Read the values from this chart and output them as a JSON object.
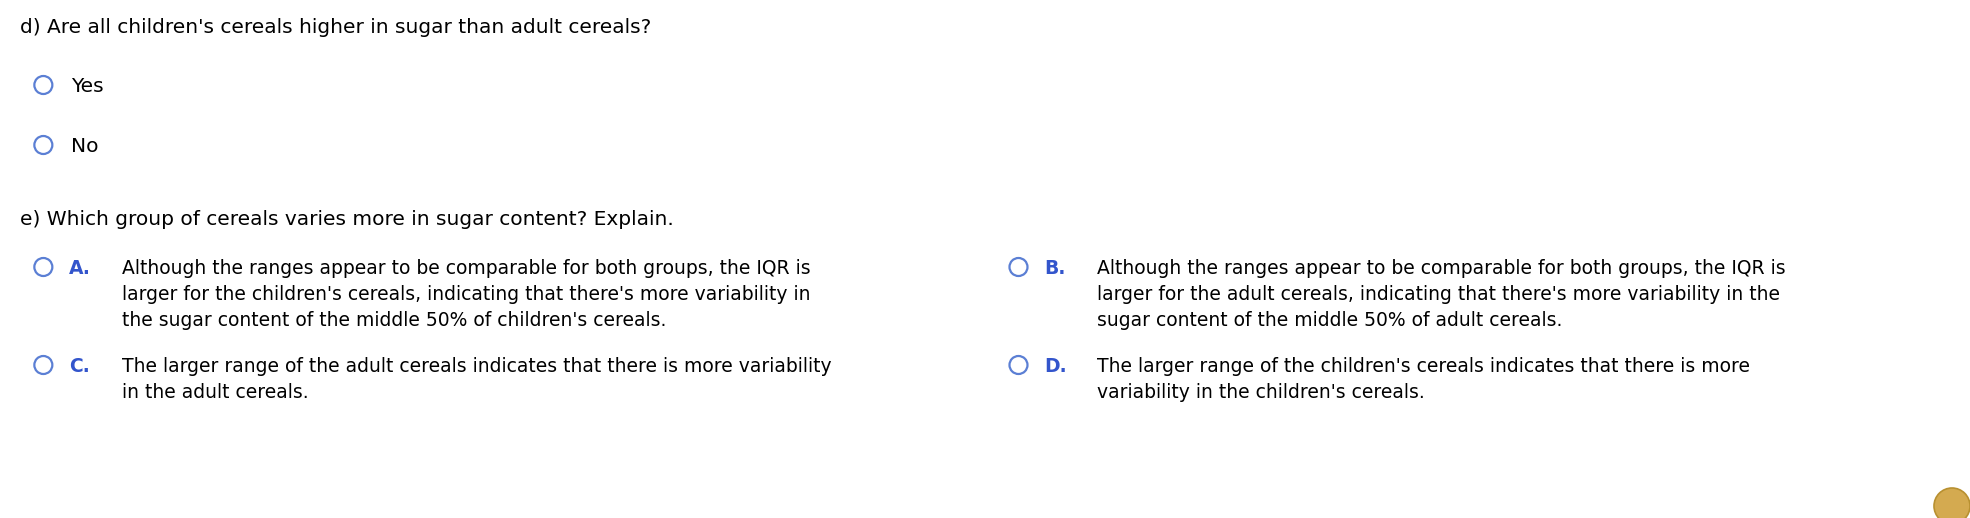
{
  "background_color": "#ffffff",
  "title_d": "d) Are all children's cereals higher in sugar than adult cereals?",
  "option_yes": "Yes",
  "option_no": "No",
  "title_e": "e) Which group of cereals varies more in sugar content? Explain.",
  "option_A_label": "A.",
  "option_A_text_line1": "Although the ranges appear to be comparable for both groups, the IQR is",
  "option_A_text_line2": "larger for the children's cereals, indicating that there's more variability in",
  "option_A_text_line3": "the sugar content of the middle 50% of children's cereals.",
  "option_B_label": "B.",
  "option_B_text_line1": "Although the ranges appear to be comparable for both groups, the IQR is",
  "option_B_text_line2": "larger for the adult cereals, indicating that there's more variability in the",
  "option_B_text_line3": "sugar content of the middle 50% of adult cereals.",
  "option_C_label": "C.",
  "option_C_text_line1": "The larger range of the adult cereals indicates that there is more variability",
  "option_C_text_line2": "in the adult cereals.",
  "option_D_label": "D.",
  "option_D_text_line1": "The larger range of the children's cereals indicates that there is more",
  "option_D_text_line2": "variability in the children's cereals.",
  "circle_color": "#5b7fd4",
  "label_color": "#3355cc",
  "text_color": "#000000",
  "font_size_main": 14.5,
  "font_size_options": 13.5,
  "bottom_circle_color": "#d4aa50",
  "bottom_circle_edge": "#b89030"
}
